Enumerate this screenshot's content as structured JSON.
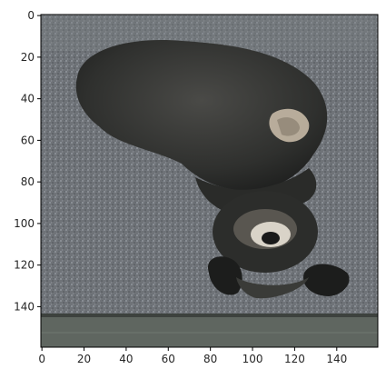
{
  "figure": {
    "image_subject": "upside-down dog on gravel",
    "image_size": {
      "width": 160,
      "height": 160
    },
    "x_ticks": [
      "0",
      "20",
      "40",
      "60",
      "80",
      "100",
      "120",
      "140"
    ],
    "y_ticks": [
      "0",
      "20",
      "40",
      "60",
      "80",
      "100",
      "120",
      "140"
    ],
    "colors": {
      "gravel": "#6f7378",
      "gravel_dark": "#4f5459",
      "dog_fur": "#2f302e",
      "dog_fur_light": "#5b5852",
      "patch": "#c7b9a6",
      "floor_board": "#5f6660",
      "axis": "#000000",
      "page": "#ffffff"
    }
  }
}
